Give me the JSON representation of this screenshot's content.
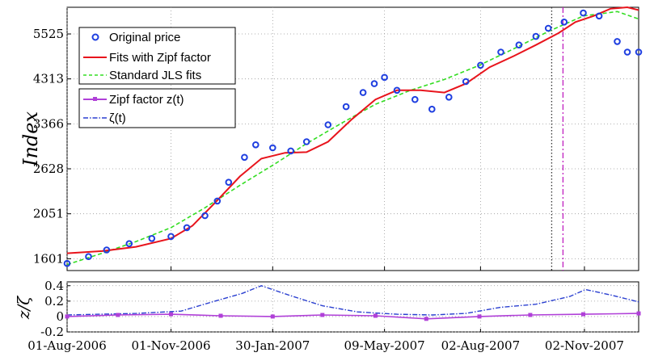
{
  "colors": {
    "original": "#1f3fe0",
    "zipf_fit": "#e8141c",
    "jls_fit": "#33dd22",
    "zipf_factor": "#b040d8",
    "zeta": "#2a3fd0",
    "vline_black": "#333333",
    "vline_magenta": "#c020c0"
  },
  "chart_data": [
    {
      "type": "line",
      "title": "",
      "xlabel": "",
      "ylabel": "Index",
      "y_scale": "log",
      "grid": true,
      "legend_placement": "top-left",
      "x_range": [
        "2006-08-01",
        "2007-12-20"
      ],
      "y_range": [
        1500,
        6400
      ],
      "x_ticks": [
        "01-Aug-2006",
        "01-Nov-2006",
        "30-Jan-2007",
        "09-May-2007",
        "02-Aug-2007",
        "02-Nov-2007"
      ],
      "y_ticks": [
        1601,
        2051,
        2628,
        3366,
        4313,
        5525
      ],
      "vertical_lines": [
        {
          "date": "2007-10-04",
          "style": "dotted",
          "color": "black"
        },
        {
          "date": "2007-10-14",
          "style": "dash-dot",
          "color": "magenta"
        }
      ],
      "series": [
        {
          "name": "Original price",
          "style": "circle-markers",
          "x": [
            "2006-08-01",
            "2006-08-20",
            "2006-09-05",
            "2006-09-25",
            "2006-10-15",
            "2006-11-01",
            "2006-11-15",
            "2006-12-01",
            "2006-12-12",
            "2006-12-22",
            "2007-01-05",
            "2007-01-15",
            "2007-01-30",
            "2007-02-15",
            "2007-03-01",
            "2007-03-20",
            "2007-04-05",
            "2007-04-20",
            "2007-04-30",
            "2007-05-09",
            "2007-05-20",
            "2007-06-05",
            "2007-06-20",
            "2007-07-05",
            "2007-07-20",
            "2007-08-02",
            "2007-08-20",
            "2007-09-05",
            "2007-09-20",
            "2007-10-01",
            "2007-10-15",
            "2007-11-01",
            "2007-11-15",
            "2007-12-01",
            "2007-12-10",
            "2007-12-20"
          ],
          "y": [
            1560,
            1620,
            1680,
            1740,
            1790,
            1810,
            1900,
            2030,
            2200,
            2440,
            2800,
            3000,
            2950,
            2900,
            3050,
            3350,
            3700,
            4000,
            4200,
            4350,
            4050,
            3850,
            3650,
            3900,
            4250,
            4650,
            5000,
            5200,
            5450,
            5700,
            5900,
            6200,
            6100,
            5300,
            5000,
            5000
          ]
        },
        {
          "name": "Fits with Zipf factor",
          "style": "solid",
          "x": [
            "2006-08-01",
            "2006-09-01",
            "2006-10-01",
            "2006-11-01",
            "2006-11-20",
            "2006-12-10",
            "2007-01-01",
            "2007-01-20",
            "2007-02-10",
            "2007-03-01",
            "2007-03-20",
            "2007-04-10",
            "2007-05-01",
            "2007-05-20",
            "2007-06-10",
            "2007-07-01",
            "2007-07-20",
            "2007-08-10",
            "2007-09-01",
            "2007-09-20",
            "2007-10-10",
            "2007-10-25",
            "2007-11-10",
            "2007-11-25",
            "2007-12-10",
            "2007-12-20"
          ],
          "y": [
            1650,
            1670,
            1710,
            1790,
            1920,
            2180,
            2520,
            2780,
            2870,
            2880,
            3050,
            3450,
            3850,
            4050,
            4050,
            4000,
            4200,
            4600,
            4900,
            5200,
            5550,
            5900,
            6100,
            6350,
            6400,
            6300
          ]
        },
        {
          "name": "Standard JLS fits",
          "style": "dashed",
          "x": [
            "2006-08-01",
            "2006-09-01",
            "2006-10-01",
            "2006-11-01",
            "2006-12-01",
            "2007-01-01",
            "2007-02-01",
            "2007-03-01",
            "2007-04-01",
            "2007-05-01",
            "2007-06-01",
            "2007-07-01",
            "2007-08-01",
            "2007-09-01",
            "2007-10-01",
            "2007-11-01",
            "2007-12-01",
            "2007-12-20"
          ],
          "y": [
            1550,
            1650,
            1760,
            1900,
            2120,
            2400,
            2700,
            3020,
            3380,
            3750,
            4050,
            4300,
            4650,
            5100,
            5600,
            6100,
            6250,
            6000
          ]
        }
      ]
    },
    {
      "type": "line",
      "title": "",
      "xlabel": "",
      "ylabel": "z/ζ",
      "grid": true,
      "legend_placement": "none",
      "x_range": [
        "2006-08-01",
        "2007-12-20"
      ],
      "y_range": [
        -0.2,
        0.45
      ],
      "y_ticks": [
        "0.4",
        "0.2",
        "0",
        "-0.2"
      ],
      "series": [
        {
          "name": "Zipf factor z(t)",
          "style": "solid-markers",
          "x": [
            "2006-08-01",
            "2006-09-15",
            "2006-11-01",
            "2006-12-15",
            "2007-01-30",
            "2007-03-15",
            "2007-05-01",
            "2007-06-15",
            "2007-08-01",
            "2007-09-15",
            "2007-11-01",
            "2007-12-20"
          ],
          "y": [
            0.0,
            0.02,
            0.03,
            0.01,
            0.0,
            0.02,
            0.01,
            -0.03,
            0.0,
            0.02,
            0.03,
            0.04
          ]
        },
        {
          "name": "ζ(t)",
          "style": "dash-dot",
          "x": [
            "2006-08-01",
            "2006-10-01",
            "2006-11-10",
            "2006-12-10",
            "2007-01-03",
            "2007-01-20",
            "2007-02-15",
            "2007-03-15",
            "2007-04-15",
            "2007-05-20",
            "2007-06-20",
            "2007-07-20",
            "2007-08-20",
            "2007-09-20",
            "2007-10-20",
            "2007-11-03",
            "2007-11-25",
            "2007-12-20"
          ],
          "y": [
            0.02,
            0.04,
            0.07,
            0.2,
            0.3,
            0.4,
            0.27,
            0.14,
            0.06,
            0.03,
            0.02,
            0.04,
            0.12,
            0.16,
            0.26,
            0.35,
            0.28,
            0.19
          ]
        }
      ]
    }
  ]
}
